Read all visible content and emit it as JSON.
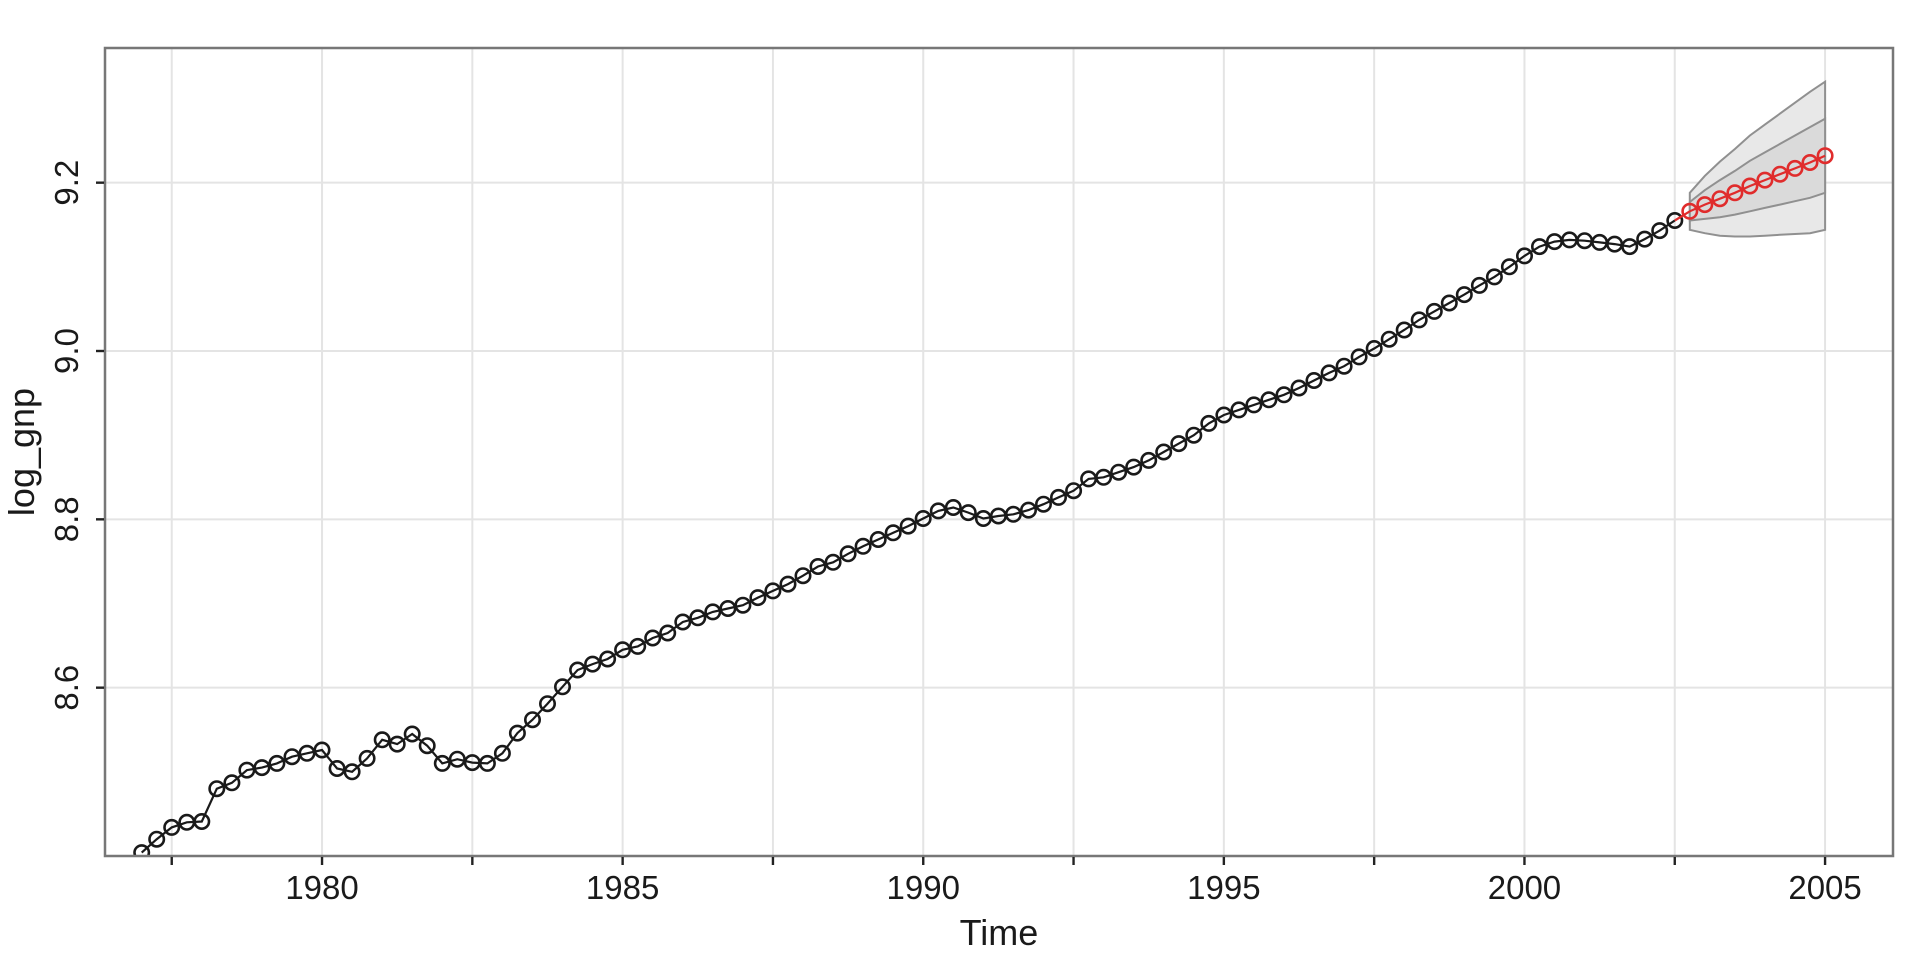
{
  "figure": {
    "background": "#FFFFFF",
    "description": "Quarterly log GNP time series with 10-quarter ahead forecast and ±1/±2 standard-error bands"
  },
  "chart_data": {
    "type": "line",
    "title": "",
    "xlabel": "Time",
    "ylabel": "log_gnp",
    "xlim": [
      1976.39,
      2006.13
    ],
    "ylim": [
      8.4,
      9.36
    ],
    "grid": {
      "on": true,
      "x_gridline_positions": [
        1977.5,
        1980,
        1982.5,
        1985,
        1987.5,
        1990,
        1992.5,
        1995,
        1997.5,
        2000,
        2002.5,
        2005
      ],
      "y_gridline_positions": [
        8.6,
        8.8,
        9.0,
        9.2
      ]
    },
    "x_tick_positions": [
      1977.5,
      1980,
      1982.5,
      1985,
      1987.5,
      1990,
      1992.5,
      1995,
      1997.5,
      2000,
      2002.5,
      2005
    ],
    "x_tick_labels": [
      "1980",
      "1985",
      "1990",
      "1995",
      "2000",
      "2005"
    ],
    "x_tick_label_positions": [
      1980,
      1985,
      1990,
      1995,
      2000,
      2005
    ],
    "y_tick_positions": [
      8.6,
      8.8,
      9.0,
      9.2
    ],
    "y_tick_labels": [
      "8.6",
      "8.8",
      "9.0",
      "9.2"
    ],
    "legend": "none",
    "observed": {
      "name": "log_gnp observed",
      "start": 1977.0,
      "frequency": 4,
      "marker": "open-circle",
      "y": [
        8.404,
        8.42,
        8.434,
        8.44,
        8.441,
        8.48,
        8.487,
        8.502,
        8.505,
        8.51,
        8.518,
        8.522,
        8.526,
        8.504,
        8.5,
        8.516,
        8.538,
        8.533,
        8.545,
        8.531,
        8.51,
        8.515,
        8.511,
        8.51,
        8.522,
        8.546,
        8.562,
        8.581,
        8.601,
        8.621,
        8.628,
        8.634,
        8.645,
        8.649,
        8.659,
        8.665,
        8.678,
        8.683,
        8.69,
        8.694,
        8.698,
        8.707,
        8.715,
        8.723,
        8.733,
        8.744,
        8.749,
        8.759,
        8.768,
        8.776,
        8.784,
        8.792,
        8.801,
        8.81,
        8.814,
        8.808,
        8.801,
        8.804,
        8.806,
        8.811,
        8.818,
        8.826,
        8.834,
        8.848,
        8.85,
        8.856,
        8.862,
        8.87,
        8.88,
        8.89,
        8.9,
        8.914,
        8.924,
        8.93,
        8.936,
        8.942,
        8.948,
        8.956,
        8.965,
        8.974,
        8.982,
        8.993,
        9.003,
        9.014,
        9.025,
        9.037,
        9.047,
        9.057,
        9.067,
        9.078,
        9.088,
        9.1,
        9.113,
        9.124,
        9.13,
        9.132,
        9.131,
        9.129,
        9.127,
        9.124,
        9.133,
        9.143,
        9.155
      ]
    },
    "forecast": {
      "name": "log_gnp forecast",
      "marker": "open-circle",
      "x": [
        2002.75,
        2003.0,
        2003.25,
        2003.5,
        2003.75,
        2004.0,
        2004.25,
        2004.5,
        2004.75,
        2005.0
      ],
      "mean": [
        9.166,
        9.174,
        9.181,
        9.188,
        9.196,
        9.203,
        9.21,
        9.217,
        9.224,
        9.232
      ],
      "se": [
        0.011,
        0.017,
        0.022,
        0.026,
        0.03,
        0.033,
        0.036,
        0.039,
        0.042,
        0.044
      ],
      "lower_1se": [
        9.155,
        9.157,
        9.159,
        9.162,
        9.166,
        9.17,
        9.174,
        9.178,
        9.182,
        9.188
      ],
      "upper_1se": [
        9.177,
        9.191,
        9.203,
        9.214,
        9.226,
        9.236,
        9.246,
        9.256,
        9.266,
        9.276
      ],
      "lower_2se": [
        9.144,
        9.14,
        9.137,
        9.136,
        9.136,
        9.137,
        9.138,
        9.139,
        9.14,
        9.144
      ],
      "upper_2se": [
        9.188,
        9.208,
        9.225,
        9.24,
        9.256,
        9.269,
        9.282,
        9.295,
        9.308,
        9.32
      ]
    },
    "colors": {
      "background": "#FFFFFF",
      "panel_border": "#777777",
      "gridline": "#E4E4E4",
      "tick": "#222222",
      "text": "#1A1A1A",
      "observed_series": "#1A1A1A",
      "forecast_series": "#E02C2C",
      "band_outer_fill": "#E8E8E8",
      "band_inner_fill": "#DADADA",
      "band_stroke": "#909090"
    }
  }
}
